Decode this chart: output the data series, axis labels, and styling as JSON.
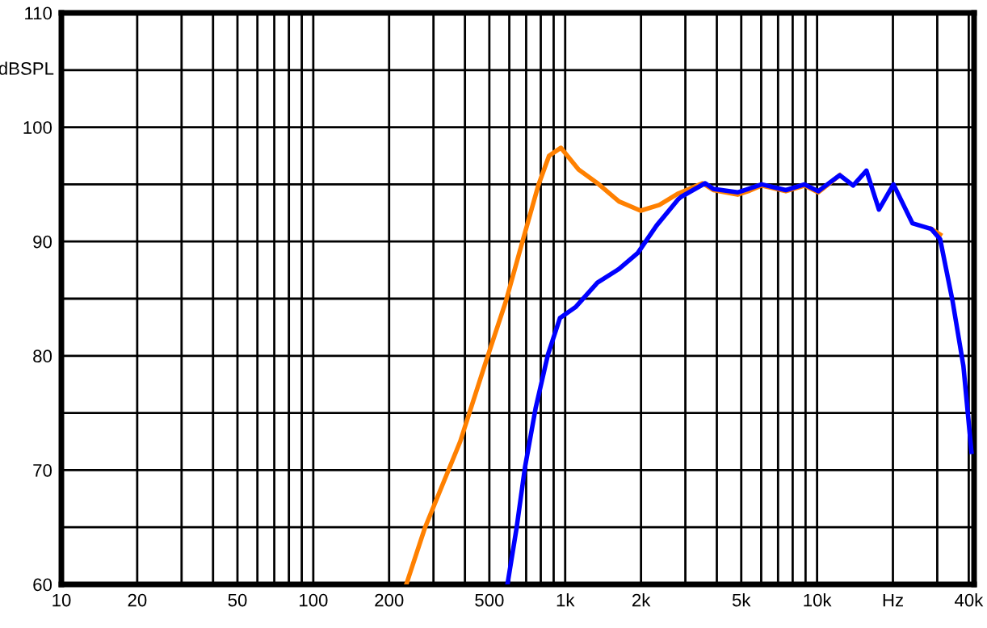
{
  "chart_data": {
    "type": "line",
    "ylabel": "dBSPL",
    "log": "x",
    "grid": true,
    "line_style": "solid",
    "marker": "none",
    "xlim": [
      10,
      42000
    ],
    "ylim": [
      60,
      110
    ],
    "xticks": [
      10,
      20,
      {
        "value": 30,
        "label": null
      },
      {
        "value": 40,
        "label": null
      },
      50,
      {
        "value": 60,
        "label": null
      },
      {
        "value": 70,
        "label": null
      },
      {
        "value": 80,
        "label": null
      },
      {
        "value": 90,
        "label": null
      },
      100,
      200,
      {
        "value": 300,
        "label": null
      },
      {
        "value": 400,
        "label": null
      },
      500,
      {
        "value": 600,
        "label": null
      },
      {
        "value": 700,
        "label": null
      },
      {
        "value": 800,
        "label": null
      },
      {
        "value": 900,
        "label": null
      },
      {
        "value": 1000,
        "label": "1k"
      },
      {
        "value": 2000,
        "label": "2k"
      },
      {
        "value": 3000,
        "label": null
      },
      {
        "value": 4000,
        "label": null
      },
      {
        "value": 5000,
        "label": "5k"
      },
      {
        "value": 6000,
        "label": null
      },
      {
        "value": 7000,
        "label": null
      },
      {
        "value": 8000,
        "label": null
      },
      {
        "value": 9000,
        "label": null
      },
      {
        "value": 10000,
        "label": "10k"
      },
      {
        "value": 20000,
        "label": "Hz"
      },
      {
        "value": 30000,
        "label": null
      },
      {
        "value": 40000,
        "label": "40k"
      }
    ],
    "yticks": [
      60,
      {
        "value": 65,
        "label": null
      },
      70,
      {
        "value": 75,
        "label": null
      },
      80,
      {
        "value": 85,
        "label": null
      },
      90,
      {
        "value": 95,
        "label": null
      },
      100,
      {
        "value": 105,
        "label": null
      },
      110
    ],
    "series": [
      {
        "color": "#ff8000",
        "x": [
          234,
          278,
          383,
          478,
          582,
          675,
          782,
          863,
          961,
          1130,
          1343,
          1636,
          1992,
          2365,
          2812,
          3510,
          3875,
          4835,
          5325,
          6026,
          7516,
          8925,
          10100,
          12300,
          13900,
          15700,
          17600,
          20100,
          23900,
          28400,
          30800
        ],
        "values": [
          60,
          65.0,
          72.5,
          79.1,
          84.8,
          89.9,
          94.9,
          97.5,
          98.2,
          96.3,
          95.1,
          93.5,
          92.7,
          93.2,
          94.2,
          95.1,
          94.5,
          94.1,
          94.4,
          94.9,
          94.4,
          94.9,
          94.3,
          95.8,
          null,
          null,
          null,
          null,
          null,
          91.1,
          90.6
        ]
      },
      {
        "color": "#0000ff",
        "x": [
          590,
          642,
          692,
          763,
          854,
          953,
          1104,
          1343,
          1636,
          1942,
          2306,
          2812,
          2880,
          3594,
          3875,
          4835,
          5325,
          6026,
          7516,
          8925,
          10100,
          12300,
          13900,
          15700,
          17600,
          20100,
          23900,
          28400,
          30800,
          34500,
          38100,
          41000
        ],
        "values": [
          60,
          65.0,
          70.2,
          75.4,
          80.1,
          83.3,
          84.3,
          86.4,
          87.6,
          89.0,
          91.4,
          93.7,
          93.9,
          95.1,
          94.6,
          94.3,
          94.6,
          95.0,
          94.5,
          95.0,
          94.4,
          95.8,
          94.9,
          96.2,
          92.8,
          95.0,
          91.6,
          91.1,
          90.2,
          84.8,
          79.1,
          71.6
        ]
      }
    ]
  }
}
